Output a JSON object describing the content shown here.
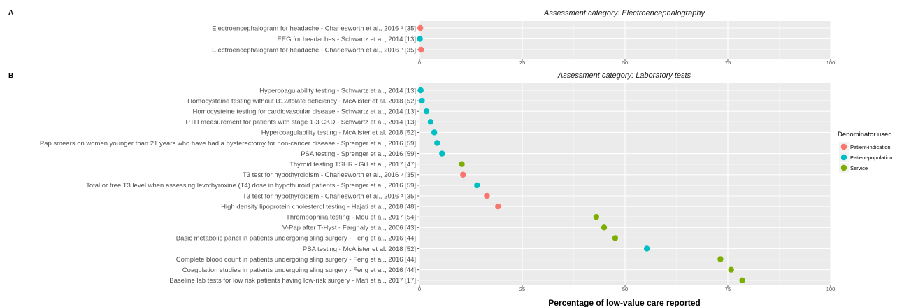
{
  "chart_data": {
    "type": "scatter",
    "xlabel": "Percentage of low-value care reported",
    "xlim": [
      0,
      100
    ],
    "x_ticks": [
      0,
      25,
      50,
      75,
      100
    ],
    "grid": true,
    "legend": {
      "title": "Denominator used",
      "placement": "right",
      "entries": [
        {
          "name": "Patient-indication",
          "color": "#F8766D"
        },
        {
          "name": "Patient-population",
          "color": "#00BFC4"
        },
        {
          "name": "Service",
          "color": "#7CAE00"
        }
      ]
    },
    "panels": [
      {
        "label": "A",
        "title": "Assessment category: Electroencephalography",
        "points": [
          {
            "label": "Electroencephalogram for headache - Charlesworth et al., 2016 ᵃ [35]",
            "x": 0.2,
            "group": "Patient-indication"
          },
          {
            "label": "EEG for headaches - Schwartz et al., 2014 [13]",
            "x": 0.1,
            "group": "Patient-population"
          },
          {
            "label": "Electroencephalogram for headache - Charlesworth et al., 2016 ᵇ [35]",
            "x": 0.4,
            "group": "Patient-indication"
          }
        ]
      },
      {
        "label": "B",
        "title": "Assessment category: Laboratory tests",
        "points": [
          {
            "label": "Hypercoagulability testing  - Schwartz et al., 2014 [13]",
            "x": 0.3,
            "group": "Patient-population"
          },
          {
            "label": "Homocysteine testing without B12/folate deficiency - McAlister et al. 2018 [52]",
            "x": 0.6,
            "group": "Patient-population"
          },
          {
            "label": "Homocysteine testing for cardiovascular disease - Schwartz et al., 2014 [13]",
            "x": 1.7,
            "group": "Patient-population"
          },
          {
            "label": "PTH measurement for patients with stage 1-3 CKD - Schwartz et al., 2014 [13]",
            "x": 2.7,
            "group": "Patient-population"
          },
          {
            "label": "Hypercoagulability testing  - McAlister et al. 2018 [52]",
            "x": 3.6,
            "group": "Patient-population"
          },
          {
            "label": "Pap smears on women younger than 21 years  who have had a hysterectomy for non-cancer disease - Sprenger et al., 2016 [59]",
            "x": 4.3,
            "group": "Patient-population"
          },
          {
            "label": "PSA testing - Sprenger et al., 2016 [59]",
            "x": 5.5,
            "group": "Patient-population"
          },
          {
            "label": "Thyroid  testing TSHR - Gill et al., 2017 [47]",
            "x": 10.3,
            "group": "Service"
          },
          {
            "label": "T3 test for hypothyroidism - Charlesworth et al., 2016 ᵇ [35]",
            "x": 10.6,
            "group": "Patient-indication"
          },
          {
            "label": "Total or free T3 level when assessing levothyroxine (T4) dose in hypothuroid patients - Sprenger et al., 2016 [59]",
            "x": 14.0,
            "group": "Patient-population"
          },
          {
            "label": "T3 test for hypothyroidism - Charlesworth et al., 2016 ᵃ [35]",
            "x": 16.4,
            "group": "Patient-indication"
          },
          {
            "label": "High density lipoprotein cholesterol testing - Hajati et al., 2018 [48]",
            "x": 19.1,
            "group": "Patient-indication"
          },
          {
            "label": "Thrombophilia testing - Mou et al., 2017 [54]",
            "x": 43.0,
            "group": "Service"
          },
          {
            "label": "V-Pap after T-Hyst - Farghaly et al., 2006 [43]",
            "x": 44.9,
            "group": "Service"
          },
          {
            "label": "Basic metabolic panel in patients undergoing sling surgery  - Feng et al., 2016 [44]",
            "x": 47.6,
            "group": "Service"
          },
          {
            "label": "PSA testing - McAlister et al. 2018 [52]",
            "x": 55.3,
            "group": "Patient-population"
          },
          {
            "label": "Complete blood count in patients undergoing sling surgery  - Feng et al., 2016 [44]",
            "x": 73.2,
            "group": "Service"
          },
          {
            "label": "Coagulation studies in patients undergoing sling surgery  - Feng et al., 2016 [44]",
            "x": 75.8,
            "group": "Service"
          },
          {
            "label": "Baseline lab tests for low risk patients having low-risk surgery - Mafi et al., 2017 [17]",
            "x": 78.5,
            "group": "Service"
          }
        ]
      }
    ]
  }
}
